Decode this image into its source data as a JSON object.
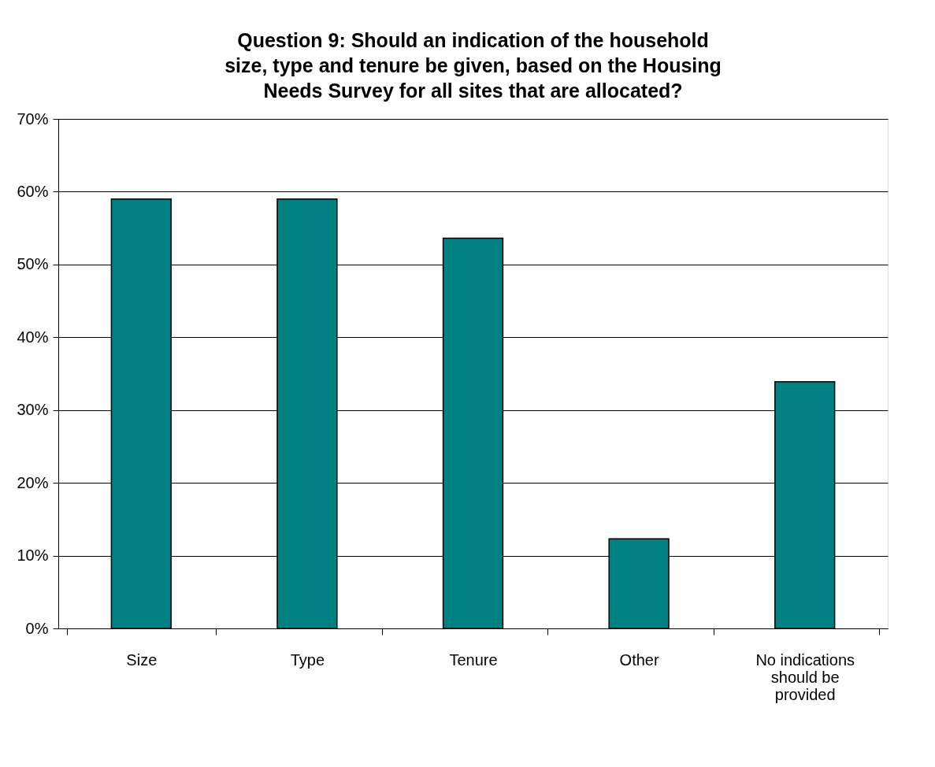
{
  "chart_data": {
    "type": "bar",
    "title": "Question 9: Should an indication of the household size, type and tenure be given, based on the Housing Needs Survey for all sites that are allocated?",
    "categories": [
      "Size",
      "Type",
      "Tenure",
      "Other",
      "No indications should be provided"
    ],
    "values": [
      59,
      59,
      53.6,
      12.3,
      33.9
    ],
    "color": "#008080",
    "ylim": [
      0,
      70
    ],
    "yticks": [
      {
        "value": 0,
        "label": "0%"
      },
      {
        "value": 10,
        "label": "10%"
      },
      {
        "value": 20,
        "label": "20%"
      },
      {
        "value": 30,
        "label": "30%"
      },
      {
        "value": 40,
        "label": "40%"
      },
      {
        "value": 50,
        "label": "50%"
      },
      {
        "value": 60,
        "label": "60%"
      },
      {
        "value": 70,
        "label": "70%"
      }
    ],
    "grid": "y"
  }
}
